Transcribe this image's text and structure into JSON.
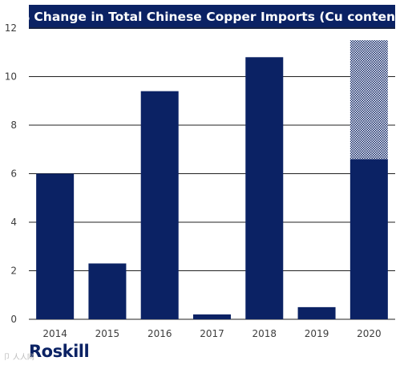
{
  "chart_data": {
    "type": "bar",
    "title": "% Change in Total Chinese Copper Imports (Cu content)",
    "xlabel": "",
    "ylabel": "",
    "categories": [
      "2014",
      "2015",
      "2016",
      "2017",
      "2018",
      "2019",
      "2020"
    ],
    "series": [
      {
        "values": [
          6.0,
          2.3,
          9.4,
          0.2,
          10.8,
          0.5,
          6.6
        ],
        "color": "#0b2264"
      },
      {
        "values": [
          0,
          0,
          0,
          0,
          0,
          0,
          4.9
        ],
        "color": "#0b2264",
        "pattern": "hatched"
      }
    ],
    "ylim": [
      0,
      12
    ],
    "yticks": [
      0,
      2,
      4,
      6,
      8,
      10,
      12
    ],
    "grid": true
  },
  "branding": {
    "logo_text": "Roskill",
    "watermark_text": "卩 人人网"
  },
  "colors": {
    "bar": "#0b2264",
    "grid": "#222222",
    "text": "#3d3d3d",
    "title_bg": "#0b2264"
  }
}
